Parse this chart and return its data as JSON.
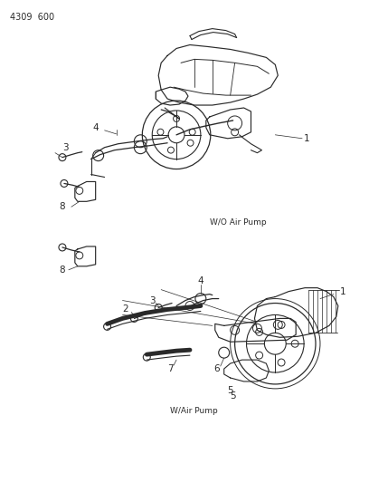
{
  "background_color": "#ffffff",
  "fig_width": 4.08,
  "fig_height": 5.33,
  "dpi": 100,
  "page_number": "4309  600",
  "top_label": "W/O Air Pump",
  "bottom_label": "W/Air Pump",
  "text_color": "#2a2a2a",
  "line_color": "#2a2a2a",
  "font_size_label": 6.5,
  "font_size_part": 7.5,
  "font_size_page": 7
}
